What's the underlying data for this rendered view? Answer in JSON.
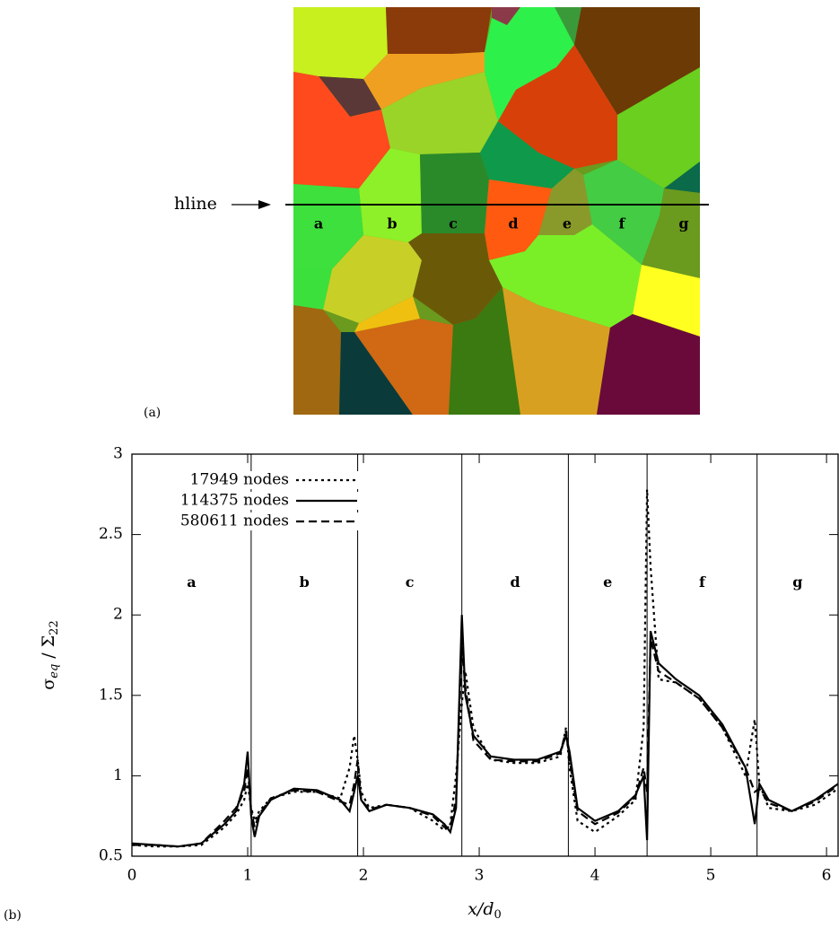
{
  "panel_a": {
    "panel_label": "(a)",
    "line_label": "hline",
    "grains": [
      "a",
      "b",
      "c",
      "d",
      "e",
      "f",
      "g"
    ]
  },
  "chart_data": {
    "type": "line",
    "panel_label": "(b)",
    "x_label": {
      "main": "x/d",
      "sub": "0"
    },
    "y_label": {
      "main": "σ",
      "sub": "eq",
      "mid": " / Σ",
      "sub2": "22"
    },
    "xlim": [
      0,
      6.1
    ],
    "ylim": [
      0.5,
      3
    ],
    "xticks": [
      0,
      1,
      2,
      3,
      4,
      5,
      6
    ],
    "yticks": [
      0.5,
      1,
      1.5,
      2,
      2.5,
      3
    ],
    "grain_boundaries": [
      1.03,
      1.95,
      2.85,
      3.77,
      4.45,
      5.4
    ],
    "grain_labels": [
      "a",
      "b",
      "c",
      "d",
      "e",
      "f",
      "g"
    ],
    "x": [
      0,
      0.2,
      0.4,
      0.6,
      0.8,
      0.9,
      0.97,
      1.0,
      1.03,
      1.06,
      1.1,
      1.2,
      1.4,
      1.6,
      1.8,
      1.88,
      1.92,
      1.95,
      1.98,
      2.05,
      2.2,
      2.4,
      2.6,
      2.7,
      2.75,
      2.8,
      2.85,
      2.88,
      2.95,
      3.1,
      3.3,
      3.5,
      3.7,
      3.75,
      3.78,
      3.85,
      4.0,
      4.2,
      4.35,
      4.42,
      4.45,
      4.48,
      4.55,
      4.7,
      4.9,
      5.1,
      5.3,
      5.38,
      5.42,
      5.5,
      5.7,
      5.9,
      6.1
    ],
    "series": [
      {
        "name": "17949 nodes",
        "color": "#000000",
        "dash": "dotted",
        "values": [
          0.57,
          0.56,
          0.56,
          0.57,
          0.68,
          0.76,
          0.85,
          0.95,
          0.8,
          0.72,
          0.78,
          0.86,
          0.9,
          0.9,
          0.86,
          1.05,
          1.25,
          1.1,
          0.9,
          0.8,
          0.82,
          0.8,
          0.72,
          0.66,
          0.7,
          1.0,
          1.45,
          1.65,
          1.3,
          1.1,
          1.08,
          1.08,
          1.12,
          1.3,
          1.05,
          0.72,
          0.65,
          0.75,
          0.85,
          1.3,
          2.78,
          2.3,
          1.6,
          1.58,
          1.48,
          1.3,
          1.0,
          1.35,
          0.95,
          0.8,
          0.78,
          0.82,
          0.92
        ]
      },
      {
        "name": "114375 nodes",
        "color": "#000000",
        "dash": "solid",
        "values": [
          0.58,
          0.57,
          0.56,
          0.58,
          0.7,
          0.78,
          0.95,
          1.15,
          0.75,
          0.62,
          0.75,
          0.85,
          0.92,
          0.91,
          0.85,
          0.78,
          0.9,
          1.0,
          0.85,
          0.78,
          0.82,
          0.8,
          0.76,
          0.7,
          0.65,
          0.8,
          2.0,
          1.5,
          1.25,
          1.12,
          1.1,
          1.1,
          1.15,
          1.25,
          1.15,
          0.8,
          0.72,
          0.78,
          0.88,
          1.0,
          0.6,
          1.9,
          1.7,
          1.6,
          1.5,
          1.32,
          1.05,
          0.7,
          0.95,
          0.85,
          0.78,
          0.85,
          0.95
        ]
      },
      {
        "name": "580611 nodes",
        "color": "#000000",
        "dash": "dashed",
        "values": [
          0.57,
          0.57,
          0.56,
          0.58,
          0.72,
          0.8,
          0.9,
          1.05,
          0.78,
          0.68,
          0.76,
          0.86,
          0.91,
          0.9,
          0.84,
          0.82,
          0.95,
          1.1,
          0.85,
          0.79,
          0.82,
          0.8,
          0.75,
          0.68,
          0.68,
          0.85,
          1.8,
          1.55,
          1.22,
          1.1,
          1.09,
          1.09,
          1.14,
          1.28,
          1.1,
          0.78,
          0.7,
          0.77,
          0.87,
          1.05,
          0.9,
          1.85,
          1.65,
          1.58,
          1.48,
          1.3,
          1.05,
          0.9,
          0.92,
          0.83,
          0.78,
          0.84,
          0.94
        ]
      }
    ]
  }
}
